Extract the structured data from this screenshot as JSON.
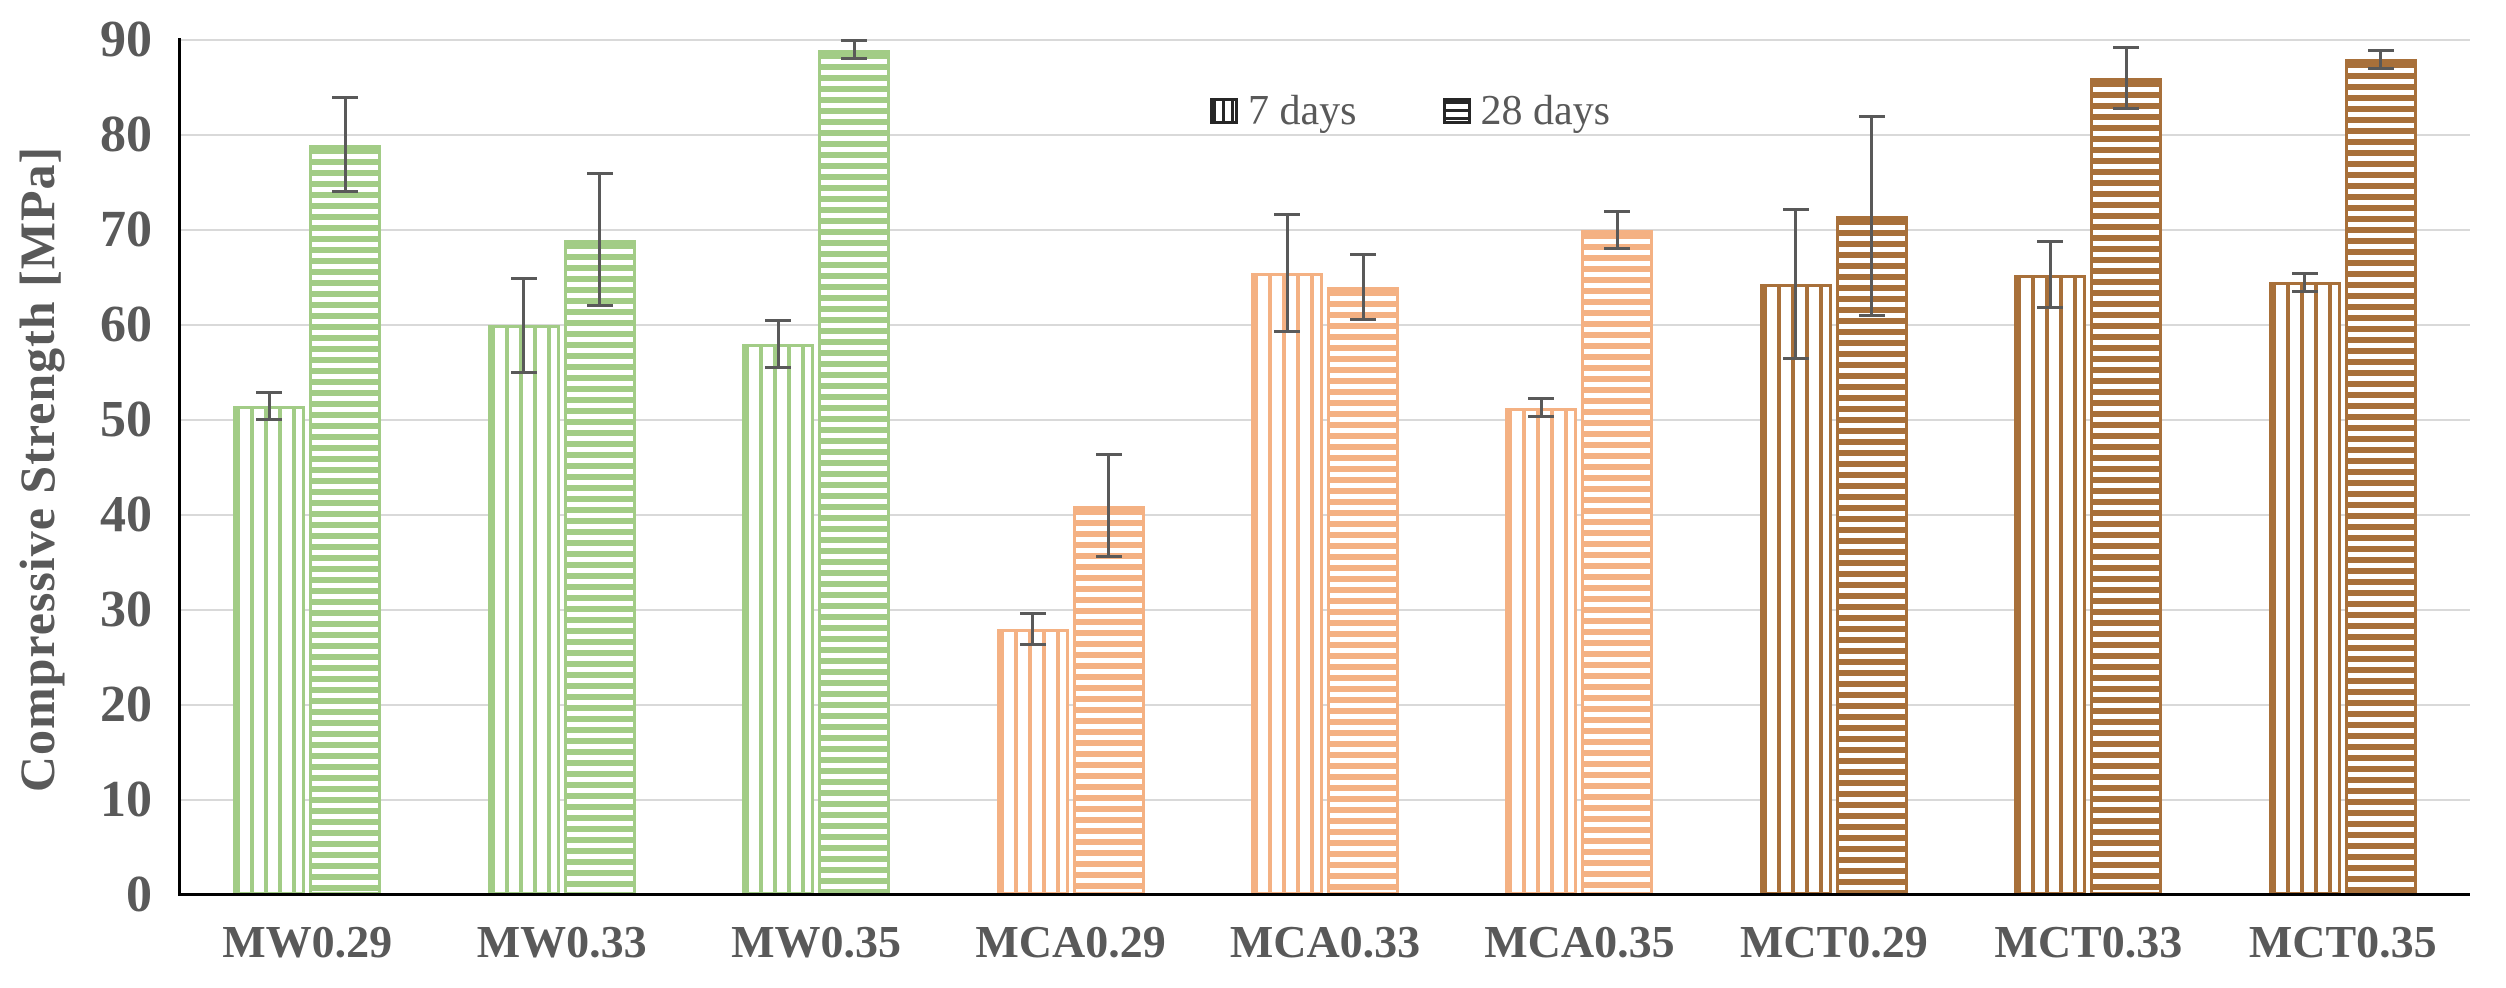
{
  "colors": {
    "mw_green": "#a2cc86",
    "mca_orange": "#f4b183",
    "mct_brown": "#a8703a",
    "axis_line": "#000000",
    "gridline": "#d9d9d9",
    "text": "#595959",
    "error_bar": "#595959",
    "legend_swatch": "#262626",
    "background": "#ffffff"
  },
  "chart_data": {
    "type": "bar",
    "title": "",
    "ylabel": "Compressive Strength [MPa]",
    "xlabel": "",
    "ylim": [
      0,
      90
    ],
    "yticks": [
      0,
      10,
      20,
      30,
      40,
      50,
      60,
      70,
      80,
      90
    ],
    "grid": true,
    "legend_position": "inside-top-center",
    "categories": [
      "MW0.29",
      "MW0.33",
      "MW0.35",
      "MCA0.29",
      "MCA0.33",
      "MCA0.35",
      "MCT0.29",
      "MCT0.33",
      "MCT0.35"
    ],
    "category_colors": [
      "#a2cc86",
      "#a2cc86",
      "#a2cc86",
      "#f4b183",
      "#f4b183",
      "#f4b183",
      "#a8703a",
      "#a8703a",
      "#a8703a"
    ],
    "series": [
      {
        "name": "7 days",
        "hatch": "vertical",
        "values": [
          51.5,
          60,
          58,
          28,
          65.5,
          51.3,
          64.3,
          65.3,
          64.5
        ],
        "error": [
          1.5,
          5,
          2.5,
          1.7,
          6.2,
          1,
          7.9,
          3.5,
          1
        ]
      },
      {
        "name": "28 days",
        "hatch": "horizontal",
        "values": [
          79,
          69,
          89,
          41,
          64,
          70,
          71.5,
          86,
          88
        ],
        "error": [
          5,
          7,
          1,
          5.4,
          3.5,
          2,
          10.5,
          3.3,
          1
        ]
      }
    ]
  }
}
